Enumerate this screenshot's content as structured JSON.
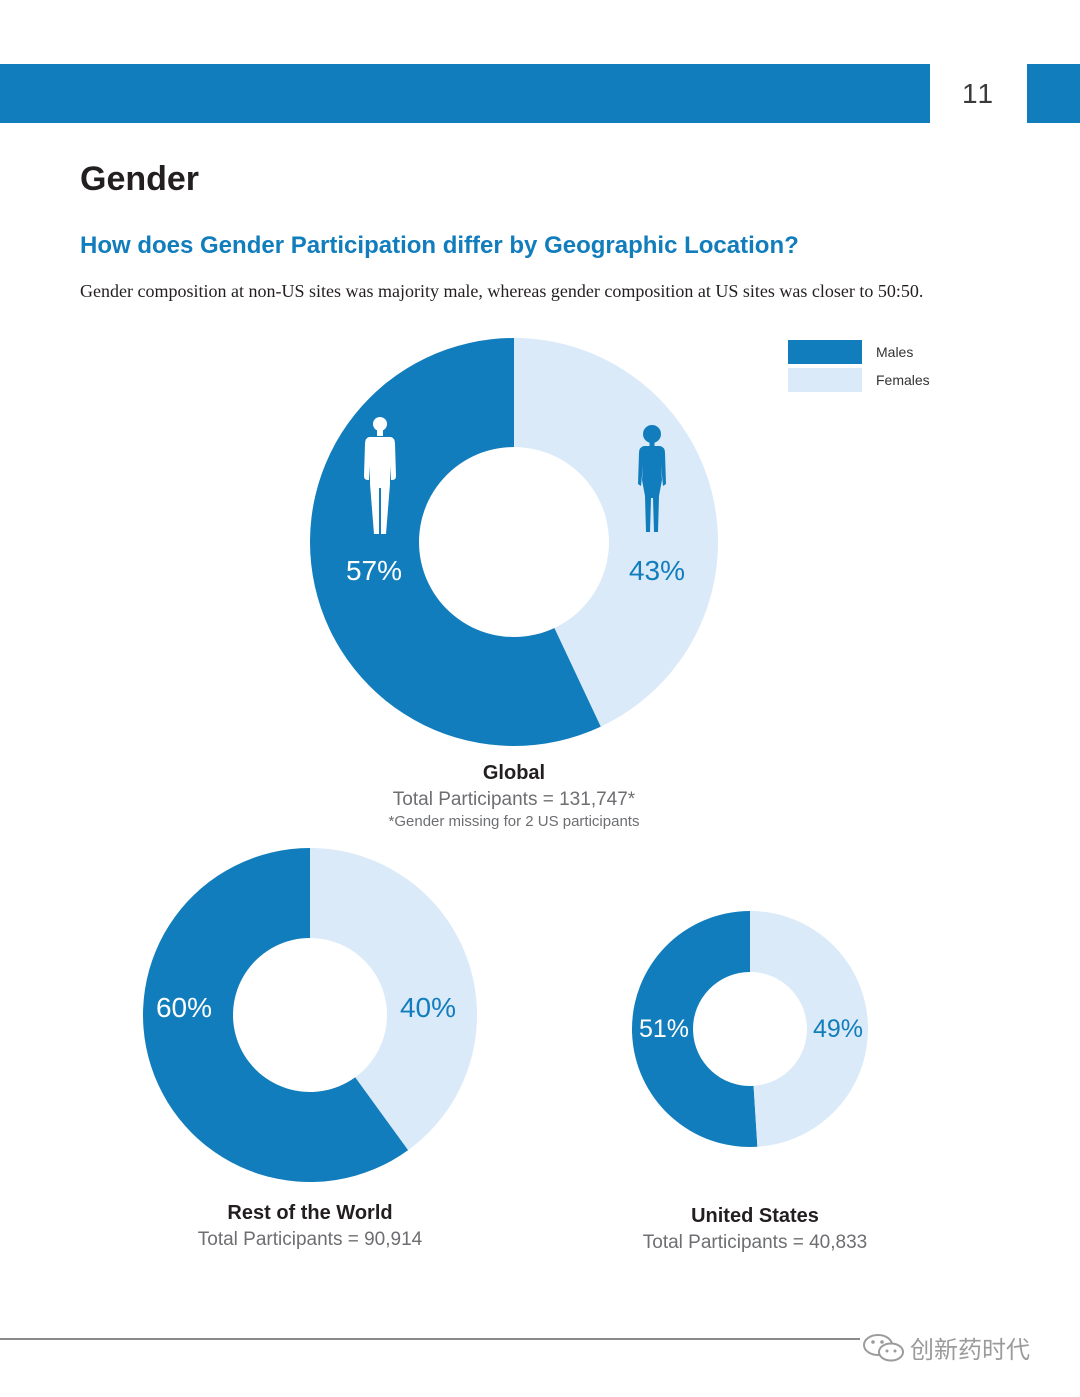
{
  "header": {
    "page_number": "11"
  },
  "title": "Gender",
  "question": "How does Gender Participation differ by Geographic Location?",
  "description": "Gender composition at non-US sites was majority male, whereas gender composition at US sites was closer to 50:50.",
  "colors": {
    "male": "#127dbc",
    "female": "#daeaf8",
    "band": "#127dbc",
    "question": "#127dbc"
  },
  "legend": {
    "male_label": "Males",
    "female_label": "Females"
  },
  "icons": {
    "male": "male-figure-icon",
    "female": "female-figure-icon",
    "wechat": "wechat-icon"
  },
  "chart_data": [
    {
      "type": "pie",
      "name": "Global",
      "categories": [
        "Males",
        "Females"
      ],
      "values": [
        57,
        43
      ],
      "value_labels": [
        "57%",
        "43%"
      ],
      "title": "Global",
      "total_label": "Total Participants = 131,747*",
      "note": "*Gender missing for 2 US participants"
    },
    {
      "type": "pie",
      "name": "Rest of the World",
      "categories": [
        "Males",
        "Females"
      ],
      "values": [
        60,
        40
      ],
      "value_labels": [
        "60%",
        "40%"
      ],
      "title": "Rest of the World",
      "total_label": "Total Participants = 90,914"
    },
    {
      "type": "pie",
      "name": "United States",
      "categories": [
        "Males",
        "Females"
      ],
      "values": [
        51,
        49
      ],
      "value_labels": [
        "51%",
        "49%"
      ],
      "title": "United States",
      "total_label": "Total Participants = 40,833"
    }
  ],
  "watermark": "创新药时代"
}
